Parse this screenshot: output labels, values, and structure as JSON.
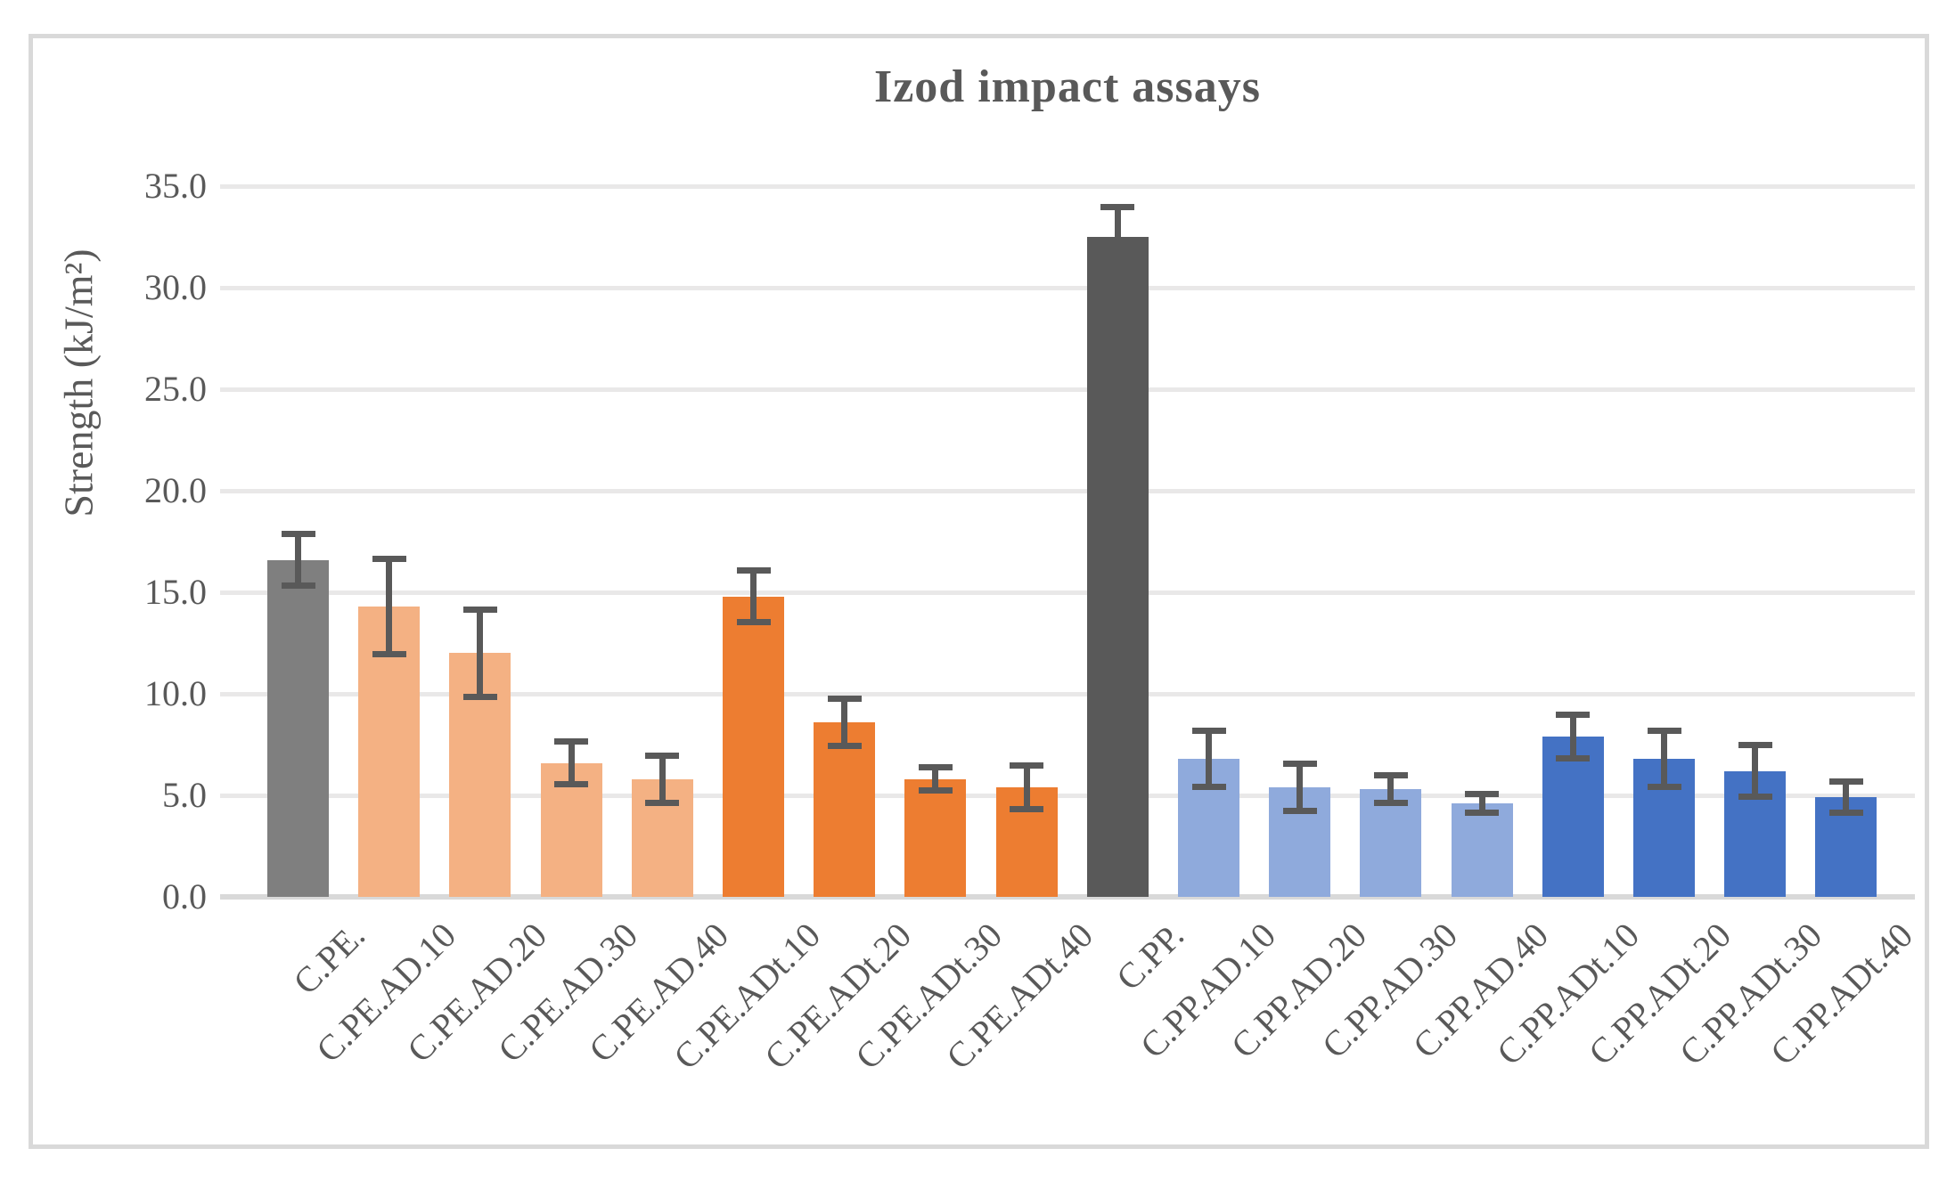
{
  "chart_data": {
    "type": "bar",
    "title": "Izod impact assays",
    "ylabel": "Strength (kJ/m²)",
    "ylim": [
      0,
      35
    ],
    "ytick_step": 5,
    "ytick_labels": [
      "0.0",
      "5.0",
      "10.0",
      "15.0",
      "20.0",
      "25.0",
      "30.0",
      "35.0"
    ],
    "grid": true,
    "legend": "none",
    "categories": [
      "C.PE.",
      "C.PE.AD.10",
      "C.PE.AD.20",
      "C.PE.AD.30",
      "C.PE.AD.40",
      "C.PE.ADt.10",
      "C.PE.ADt.20",
      "C.PE.ADt.30",
      "C.PE.ADt.40",
      "C.PP.",
      "C.PP.AD.10",
      "C.PP.AD.20",
      "C.PP.AD.30",
      "C.PP.AD.40",
      "C.PP.ADt.10",
      "C.PP.ADt.20",
      "C.PP.ADt.30",
      "C.PP.ADt.40"
    ],
    "values": [
      16.6,
      14.3,
      12.0,
      6.6,
      5.8,
      14.8,
      8.6,
      5.8,
      5.4,
      32.5,
      6.8,
      5.4,
      5.3,
      4.6,
      7.9,
      6.8,
      6.2,
      4.9
    ],
    "errors": [
      1.2,
      2.3,
      2.1,
      1.0,
      1.1,
      1.2,
      1.1,
      0.5,
      1.0,
      1.4,
      1.3,
      1.1,
      0.6,
      0.4,
      1.0,
      1.3,
      1.2,
      0.7
    ],
    "bar_colors": [
      "#7f7f7f",
      "#f4b183",
      "#f4b183",
      "#f4b183",
      "#f4b183",
      "#ed7d31",
      "#ed7d31",
      "#ed7d31",
      "#ed7d31",
      "#595959",
      "#8faadc",
      "#8faadc",
      "#8faadc",
      "#8faadc",
      "#4472c4",
      "#4472c4",
      "#4472c4",
      "#4472c4"
    ]
  },
  "colors": {
    "text": "#595959",
    "error_bar": "#595959",
    "gridline": "#e9e8e8",
    "baseline": "#d9d9d9",
    "frame_border": "#d9d9d9",
    "background": "#ffffff"
  }
}
